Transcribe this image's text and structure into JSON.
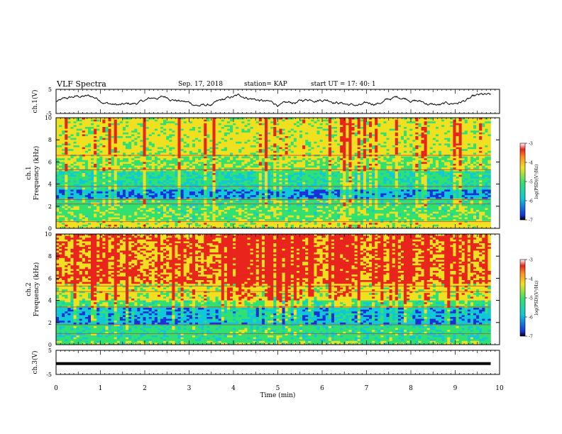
{
  "header": {
    "title": "VLF Spectra",
    "date": "Sep. 17, 2018",
    "station": "station= KAP",
    "start": "start  UT =   17: 40: 1"
  },
  "chart_data": [
    {
      "type": "line",
      "panel": "ch1-waveform",
      "ylabel": "ch.1(V)",
      "ylim": [
        -5,
        5
      ],
      "yticks": [
        "5",
        "-5"
      ],
      "xlim": [
        0,
        10
      ]
    },
    {
      "type": "heatmap",
      "panel": "ch1-spectrogram",
      "ylabel": "ch.1\nFrequency (kHz)",
      "ylim": [
        0,
        10
      ],
      "yticks": [
        "0",
        "2",
        "4",
        "6",
        "8",
        "10"
      ],
      "xlim": [
        0,
        10
      ],
      "colorbar": {
        "label": "log(PSD)(V²/Hz)",
        "range": [
          -7,
          -3
        ],
        "ticks": [
          "-3",
          "-4",
          "-5",
          "-6",
          "-7"
        ]
      }
    },
    {
      "type": "heatmap",
      "panel": "ch2-spectrogram",
      "ylabel": "ch.2\nFrequency (kHz)",
      "ylim": [
        0,
        10
      ],
      "yticks": [
        "0",
        "2",
        "4",
        "6",
        "8",
        "10"
      ],
      "xlim": [
        0,
        10
      ],
      "colorbar": {
        "label": "log(PSD)(V²/Hz)",
        "range": [
          -7,
          -3
        ],
        "ticks": [
          "-3",
          "-4",
          "-5",
          "-6",
          "-7"
        ]
      }
    },
    {
      "type": "line",
      "panel": "ch3-waveform",
      "ylabel": "ch.3(V)",
      "ylim": [
        -5,
        5
      ],
      "yticks": [
        "5",
        "-5"
      ],
      "xlabel": "Time (min)",
      "xlim": [
        0,
        10
      ],
      "xticks": [
        "0",
        "1",
        "2",
        "3",
        "4",
        "5",
        "6",
        "7",
        "8",
        "9",
        "10"
      ]
    }
  ],
  "colors": {
    "high": "#e8241c",
    "upper": "#f0e020",
    "mid": "#30e070",
    "lower": "#10c8d8",
    "low": "#1830d8",
    "min": "#000000"
  }
}
